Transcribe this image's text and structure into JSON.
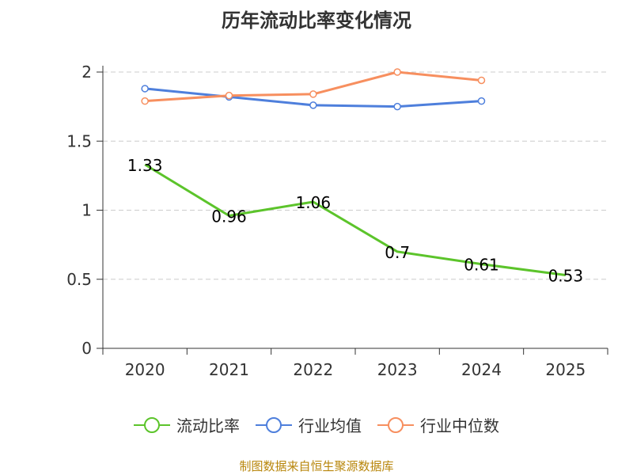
{
  "chart_data": {
    "type": "line",
    "title": "历年流动比率变化情况",
    "categories": [
      "2020",
      "2021",
      "2022",
      "2023",
      "2024",
      "2025"
    ],
    "ylim": [
      0,
      2
    ],
    "yticks": [
      "0",
      "0.5",
      "1",
      "1.5",
      "2"
    ],
    "ytick_values": [
      0,
      0.5,
      1,
      1.5,
      2
    ],
    "grid": true,
    "legend_position": "bottom",
    "series": [
      {
        "name": "流动比率",
        "color": "#5cc42b",
        "values": [
          1.33,
          0.96,
          1.06,
          0.7,
          0.61,
          0.53
        ],
        "labels": [
          "1.33",
          "0.96",
          "1.06",
          "0.7",
          "0.61",
          "0.53"
        ]
      },
      {
        "name": "行业均值",
        "color": "#4e7fdc",
        "values": [
          1.88,
          1.82,
          1.76,
          1.75,
          1.79,
          null
        ]
      },
      {
        "name": "行业中位数",
        "color": "#f78f5f",
        "values": [
          1.79,
          1.83,
          1.84,
          2.0,
          1.94,
          null
        ]
      }
    ]
  },
  "footer": "制图数据来自恒生聚源数据库"
}
